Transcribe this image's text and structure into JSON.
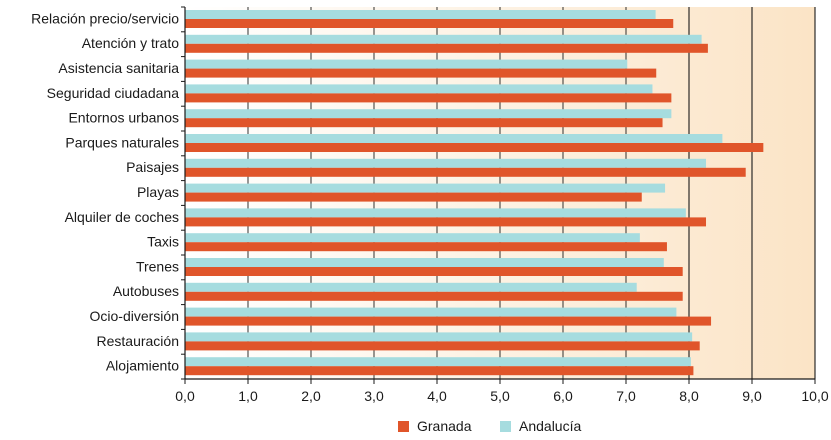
{
  "chart_data": {
    "type": "bar",
    "orientation": "horizontal",
    "categories": [
      "Relación precio/servicio",
      "Atención y trato",
      "Asistencia sanitaria",
      "Seguridad ciudadana",
      "Entornos urbanos",
      "Parques naturales",
      "Paisajes",
      "Playas",
      "Alquiler de coches",
      "Taxis",
      "Trenes",
      "Autobuses",
      "Ocio-diversión",
      "Restauración",
      "Alojamiento"
    ],
    "series": [
      {
        "name": "Granada",
        "color": "#e0552a",
        "values": [
          7.75,
          8.3,
          7.48,
          7.72,
          7.58,
          9.18,
          8.9,
          7.25,
          8.27,
          7.65,
          7.9,
          7.9,
          8.35,
          8.17,
          8.07
        ]
      },
      {
        "name": "Andalucía",
        "color": "#a6dcdf",
        "values": [
          7.47,
          8.2,
          7.02,
          7.42,
          7.72,
          8.53,
          8.27,
          7.62,
          7.95,
          7.22,
          7.6,
          7.17,
          7.8,
          8.05,
          8.03
        ]
      }
    ],
    "xlim": [
      0,
      10
    ],
    "x_ticks": [
      "0,0",
      "1,0",
      "2,0",
      "3,0",
      "4,0",
      "5,0",
      "6,0",
      "7,0",
      "8,0",
      "9,0",
      "10,0"
    ],
    "grid": true,
    "background_gradient": [
      "#ffffff",
      "#fbe4c6"
    ],
    "legend": {
      "position": "bottom-center",
      "entries": [
        "Granada",
        "Andalucía"
      ]
    }
  }
}
